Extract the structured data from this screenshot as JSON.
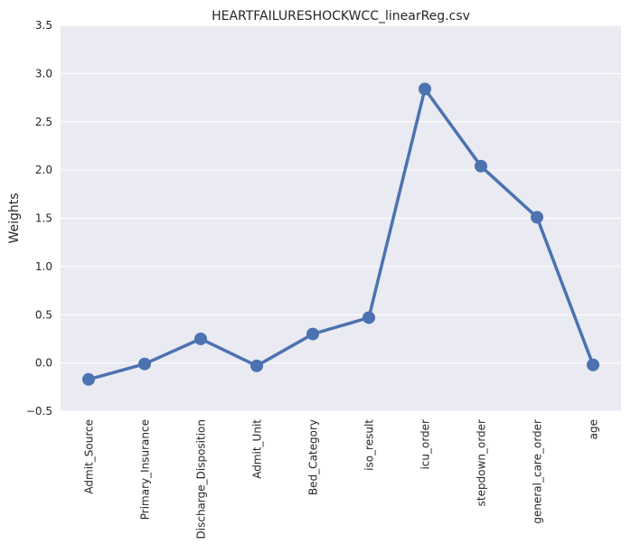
{
  "chart_data": {
    "type": "line",
    "title": "HEARTFAILURESHOCKWCC_linearReg.csv",
    "xlabel": "",
    "ylabel": "Weights",
    "categories": [
      "Admit_Source",
      "Primary_Insurance",
      "Discharge_Disposition",
      "Admit_Unit",
      "Bed_Category",
      "iso_result",
      "icu_order",
      "stepdown_order",
      "general_care_order",
      "age"
    ],
    "values": [
      -0.17,
      -0.01,
      0.25,
      -0.03,
      0.3,
      0.47,
      2.84,
      2.04,
      1.51,
      -0.02
    ],
    "ylim": [
      -0.5,
      3.5
    ],
    "yticks": [
      "−0.5",
      "0.0",
      "0.5",
      "1.0",
      "1.5",
      "2.0",
      "2.5",
      "3.0",
      "3.5"
    ],
    "grid": true,
    "colors": {
      "series": "#4c72b0",
      "plot_background": "#eaeaf2",
      "grid": "#ffffff"
    }
  }
}
